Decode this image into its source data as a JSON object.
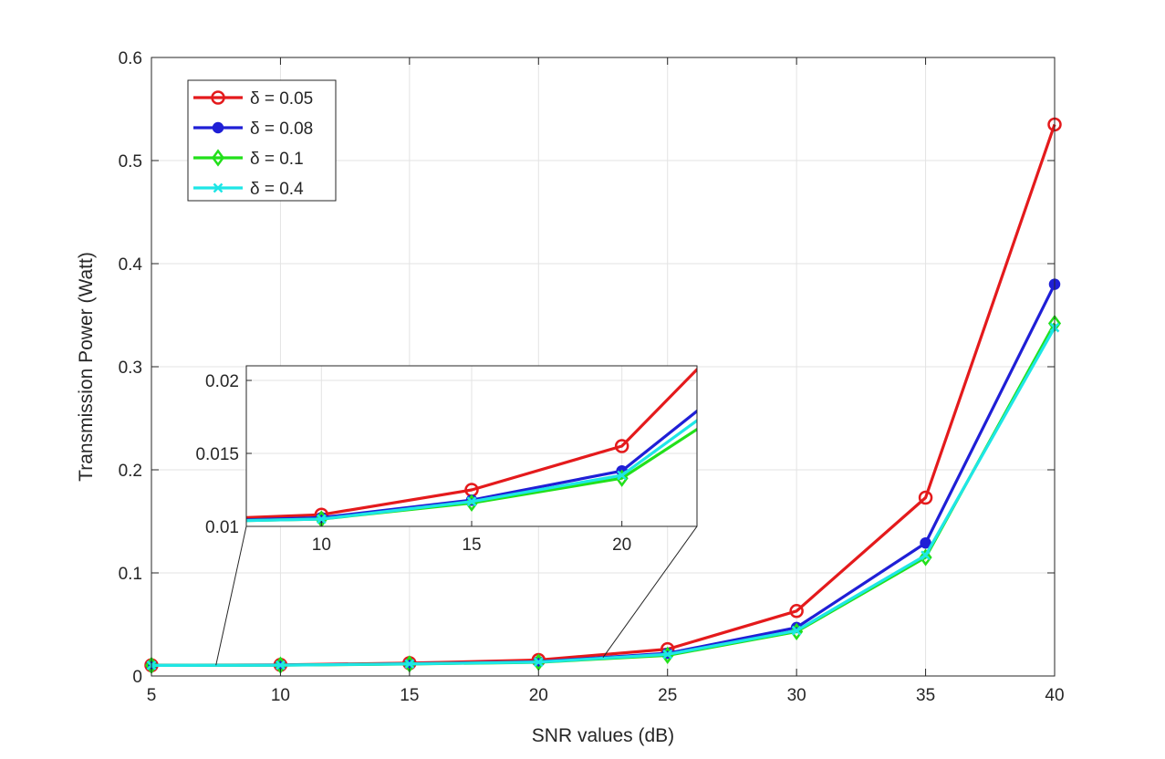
{
  "chart_data": {
    "type": "line",
    "title": "",
    "xlabel": "SNR values (dB)",
    "ylabel": "Transmission Power (Watt)",
    "xlim": [
      5,
      40
    ],
    "ylim": [
      0,
      0.6
    ],
    "xticks": [
      "5",
      "10",
      "15",
      "20",
      "25",
      "30",
      "35",
      "40"
    ],
    "yticks": [
      "0",
      "0.1",
      "0.2",
      "0.3",
      "0.4",
      "0.5",
      "0.6"
    ],
    "grid": true,
    "legend_position": "top-left",
    "x": [
      5,
      10,
      15,
      20,
      25,
      30,
      35,
      40
    ],
    "series": [
      {
        "name": "δ = 0.05",
        "color": "#e41a1c",
        "marker": "circle-open",
        "values": [
          0.0104,
          0.0108,
          0.0125,
          0.0155,
          0.026,
          0.063,
          0.173,
          0.535
        ]
      },
      {
        "name": "δ = 0.08",
        "color": "#1f1fd6",
        "marker": "circle-filled",
        "values": [
          0.0103,
          0.0106,
          0.0118,
          0.0138,
          0.022,
          0.047,
          0.129,
          0.38
        ]
      },
      {
        "name": "δ = 0.1",
        "color": "#22e01a",
        "marker": "diamond",
        "values": [
          0.0103,
          0.0105,
          0.0116,
          0.0133,
          0.02,
          0.043,
          0.115,
          0.342
        ]
      },
      {
        "name": "δ = 0.4",
        "color": "#1ee6e6",
        "marker": "x",
        "values": [
          0.0103,
          0.0105,
          0.0117,
          0.0135,
          0.021,
          0.044,
          0.117,
          0.338
        ]
      }
    ],
    "inset": {
      "xlim": [
        7.5,
        22.5
      ],
      "ylim": [
        0.01,
        0.021
      ],
      "xticks": [
        "10",
        "15",
        "20"
      ],
      "yticks": [
        "0.01",
        "0.015",
        "0.02"
      ]
    }
  }
}
